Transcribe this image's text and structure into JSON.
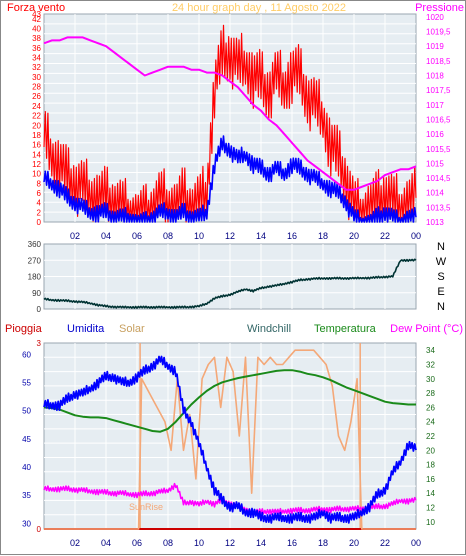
{
  "title": "24 hour graph day , 11 Agosto 2022",
  "colors": {
    "wind_max": "#ff0000",
    "wind_avg": "#0000ff",
    "pressure": "#ff00ff",
    "direction": "#003333",
    "humidity": "#0000ff",
    "solar": "#f4a878",
    "windchill": "#336666",
    "temperature": "#1a8a1a",
    "dewpoint": "#ff00ff",
    "rain": "#cc0000",
    "plot_bg": "#e6edf2",
    "grid": "#ffffff",
    "sunrise_line": "#f4a878"
  },
  "chart_data": [
    {
      "id": "wind",
      "type": "line",
      "left_axis_label": "Forza vento",
      "right_axis_label": "Pressione",
      "x_ticks": [
        "02",
        "04",
        "06",
        "08",
        "10",
        "12",
        "14",
        "16",
        "18",
        "20",
        "22",
        "00"
      ],
      "y_left_ticks": [
        "0",
        "2",
        "4",
        "6",
        "8",
        "10",
        "12",
        "14",
        "16",
        "18",
        "20",
        "22",
        "24",
        "26",
        "28",
        "30",
        "32",
        "34",
        "36",
        "38",
        "40",
        "42",
        "43"
      ],
      "y_right_ticks": [
        "1013",
        "1013,5",
        "1014",
        "1014,5",
        "1015",
        "1015,5",
        "1016",
        "1016,5",
        "1017",
        "1017,5",
        "1018",
        "1018,5",
        "1019",
        "1019,5",
        "1020"
      ],
      "ylim_left": [
        0,
        43
      ],
      "ylim_right": [
        1013,
        1020.1
      ],
      "series": [
        {
          "key": "gust",
          "axis": "left",
          "x": [
            0,
            0.5,
            1,
            1.5,
            2,
            2.5,
            3,
            3.5,
            4,
            4.5,
            5,
            5.5,
            6,
            6.5,
            7,
            7.5,
            8,
            8.5,
            9,
            9.5,
            10,
            10.5,
            11,
            11.5,
            12,
            12.5,
            13,
            13.5,
            14,
            14.5,
            15,
            15.5,
            16,
            16.5,
            17,
            17.5,
            18,
            18.5,
            19,
            19.5,
            20,
            20.5,
            21,
            21.5,
            22,
            22.5,
            23,
            23.5,
            24
          ],
          "values": [
            18,
            14,
            12,
            9,
            8,
            7,
            6,
            5,
            5,
            4,
            3,
            2,
            1,
            1,
            3,
            5,
            4,
            3,
            5,
            3,
            4,
            6,
            28,
            34,
            35,
            32,
            33,
            30,
            29,
            27,
            30,
            28,
            31,
            30,
            26,
            24,
            22,
            16,
            13,
            9,
            3,
            2,
            3,
            4,
            6,
            4,
            3,
            4,
            5
          ]
        },
        {
          "key": "average",
          "axis": "left",
          "x": [
            0,
            0.5,
            1,
            1.5,
            2,
            2.5,
            3,
            3.5,
            4,
            4.5,
            5,
            5.5,
            6,
            6.5,
            7,
            7.5,
            8,
            8.5,
            9,
            9.5,
            10,
            10.5,
            11,
            11.5,
            12,
            12.5,
            13,
            13.5,
            14,
            14.5,
            15,
            15.5,
            16,
            16.5,
            17,
            17.5,
            18,
            18.5,
            19,
            19.5,
            20,
            20.5,
            21,
            21.5,
            22,
            22.5,
            23,
            23.5,
            24
          ],
          "values": [
            9,
            8,
            7,
            5,
            4,
            3,
            2,
            2,
            2,
            1,
            1,
            1,
            0,
            0,
            1,
            2,
            2,
            1,
            2,
            1,
            1,
            2,
            12,
            16,
            15,
            13,
            14,
            12,
            11,
            10,
            11,
            10,
            12,
            11,
            10,
            9,
            8,
            7,
            6,
            4,
            1,
            0,
            0,
            1,
            2,
            1,
            0,
            1,
            1
          ]
        },
        {
          "key": "pressure",
          "axis": "right",
          "x": [
            0,
            0.5,
            1,
            1.5,
            2,
            2.5,
            3,
            3.5,
            4,
            4.5,
            5,
            5.5,
            6,
            6.5,
            7,
            7.5,
            8,
            8.5,
            9,
            9.5,
            10,
            10.5,
            11,
            11.5,
            12,
            12.5,
            13,
            13.5,
            14,
            14.5,
            15,
            15.5,
            16,
            16.5,
            17,
            17.5,
            18,
            18.5,
            19,
            19.5,
            20,
            20.5,
            21,
            21.5,
            22,
            22.5,
            23,
            23.5,
            24
          ],
          "values": [
            1019.1,
            1019.2,
            1019.2,
            1019.3,
            1019.3,
            1019.3,
            1019.2,
            1019.1,
            1019.0,
            1018.8,
            1018.6,
            1018.4,
            1018.2,
            1018.0,
            1018.1,
            1018.2,
            1018.3,
            1018.3,
            1018.3,
            1018.2,
            1018.2,
            1018.1,
            1018.1,
            1018.0,
            1017.8,
            1017.6,
            1017.3,
            1017.0,
            1016.8,
            1016.5,
            1016.3,
            1016.0,
            1015.7,
            1015.4,
            1015.1,
            1014.9,
            1014.7,
            1014.5,
            1014.3,
            1014.1,
            1014.1,
            1014.2,
            1014.3,
            1014.4,
            1014.6,
            1014.7,
            1014.8,
            1014.8,
            1014.9
          ]
        }
      ]
    },
    {
      "id": "direction",
      "type": "line",
      "y_left_ticks": [
        "0",
        "90",
        "180",
        "270",
        "360"
      ],
      "y_right_labels": [
        "N",
        "W",
        "S",
        "E",
        "N"
      ],
      "ylim": [
        0,
        360
      ],
      "series": [
        {
          "key": "direction",
          "x": [
            0,
            0.5,
            1,
            1.5,
            2,
            2.5,
            3,
            3.5,
            4,
            4.5,
            5,
            5.5,
            6,
            6.5,
            7,
            7.5,
            8,
            8.5,
            9,
            9.5,
            10,
            10.5,
            11,
            11.5,
            12,
            12.5,
            13,
            13.5,
            14,
            14.5,
            15,
            15.5,
            16,
            16.5,
            17,
            17.5,
            18,
            18.5,
            19,
            19.5,
            20,
            20.5,
            21,
            21.5,
            22,
            22.5,
            23,
            23.5,
            24
          ],
          "values": [
            55,
            50,
            48,
            45,
            42,
            38,
            32,
            22,
            15,
            12,
            10,
            10,
            10,
            10,
            10,
            10,
            10,
            10,
            10,
            12,
            15,
            30,
            60,
            70,
            80,
            95,
            110,
            100,
            115,
            125,
            130,
            140,
            150,
            160,
            165,
            168,
            170,
            170,
            170,
            170,
            170,
            172,
            172,
            175,
            178,
            180,
            270,
            270,
            270
          ]
        }
      ]
    },
    {
      "id": "temperature",
      "type": "line",
      "labels": {
        "rain": "Pioggia",
        "humidity": "Umidita",
        "solar": "Solar",
        "windchill": "Windchill",
        "temperature": "Temperatura",
        "dewpoint": "Dew Point (°C)"
      },
      "sunrise_label": "SunRise",
      "sunrise_x": [
        6.2,
        20.4
      ],
      "x_ticks": [
        "02",
        "04",
        "06",
        "08",
        "10",
        "12",
        "14",
        "16",
        "18",
        "20",
        "22",
        "00"
      ],
      "y_left_ticks": [
        "30",
        "35",
        "40",
        "45",
        "50",
        "55",
        "60"
      ],
      "y_right_ticks": [
        "10",
        "12",
        "14",
        "16",
        "18",
        "20",
        "22",
        "24",
        "26",
        "28",
        "30",
        "32",
        "34"
      ],
      "y_rain_ticks": [
        "0",
        "3"
      ],
      "ylim_left": [
        29,
        62
      ],
      "ylim_right": [
        9,
        35
      ],
      "series": [
        {
          "key": "humidity",
          "axis": "left",
          "x": [
            0,
            0.5,
            1,
            1.5,
            2,
            2.5,
            3,
            3.5,
            4,
            4.5,
            5,
            5.5,
            6,
            6.5,
            7,
            7.5,
            8,
            8.5,
            9,
            9.5,
            10,
            10.5,
            11,
            11.5,
            12,
            12.5,
            13,
            13.5,
            14,
            14.5,
            15,
            15.5,
            16,
            16.5,
            17,
            17.5,
            18,
            18.5,
            19,
            19.5,
            20,
            20.5,
            21,
            21.5,
            22,
            22.5,
            23,
            23.5,
            24
          ],
          "values": [
            51,
            51,
            51,
            52,
            53,
            53,
            54,
            55,
            56,
            56,
            55,
            55,
            56,
            57,
            58,
            59,
            58,
            57,
            50,
            48,
            44,
            40,
            36,
            34,
            33,
            33,
            32,
            32,
            31,
            31,
            31,
            31,
            31,
            31,
            31,
            31,
            32,
            31,
            31,
            31,
            31,
            32,
            33,
            35,
            36,
            39,
            41,
            44,
            43
          ]
        },
        {
          "key": "solar",
          "axis": "right",
          "x": [
            0,
            6.1,
            6.3,
            6.8,
            7.3,
            7.8,
            8.2,
            8.6,
            9.0,
            9.4,
            9.8,
            10.2,
            10.6,
            11.0,
            11.4,
            11.8,
            12.2,
            12.6,
            13.0,
            13.4,
            13.8,
            14.2,
            14.6,
            15.0,
            15.4,
            15.8,
            16.2,
            16.6,
            17.0,
            17.4,
            17.8,
            18.2,
            18.6,
            19.0,
            19.4,
            19.8,
            20.2,
            20.5,
            24
          ],
          "values": [
            9,
            9,
            30,
            28,
            26,
            24,
            20,
            30,
            20,
            25,
            16,
            30,
            32,
            33,
            26,
            33,
            31,
            22,
            33,
            14,
            33,
            32,
            33,
            32,
            32,
            33,
            34,
            34,
            34,
            34,
            33,
            32,
            29,
            22,
            20,
            24,
            30,
            9,
            9
          ]
        },
        {
          "key": "temperature",
          "axis": "right",
          "x": [
            0,
            0.5,
            1,
            1.5,
            2,
            2.5,
            3,
            3.5,
            4,
            4.5,
            5,
            5.5,
            6,
            6.5,
            7,
            7.5,
            8,
            8.5,
            9,
            9.5,
            10,
            10.5,
            11,
            11.5,
            12,
            12.5,
            13,
            13.5,
            14,
            14.5,
            15,
            15.5,
            16,
            16.5,
            17,
            17.5,
            18,
            18.5,
            19,
            19.5,
            20,
            20.5,
            21,
            21.5,
            22,
            22.5,
            23,
            23.5,
            24
          ],
          "values": [
            26.0,
            25.9,
            25.7,
            25.3,
            24.9,
            24.7,
            24.6,
            24.6,
            24.5,
            24.2,
            23.9,
            23.6,
            23.3,
            23.0,
            22.7,
            22.6,
            23.0,
            24.0,
            25.2,
            26.4,
            27.4,
            28.3,
            29.0,
            29.5,
            29.8,
            30.1,
            30.3,
            30.5,
            30.7,
            30.9,
            31.1,
            31.2,
            31.2,
            31.0,
            30.7,
            30.5,
            30.2,
            29.8,
            29.3,
            28.8,
            28.4,
            28.0,
            27.6,
            27.2,
            26.8,
            26.6,
            26.5,
            26.4,
            26.4
          ]
        },
        {
          "key": "dewpoint",
          "axis": "right",
          "x": [
            0,
            0.5,
            1,
            1.5,
            2,
            2.5,
            3,
            3.5,
            4,
            4.5,
            5,
            5.5,
            6,
            6.5,
            7,
            7.5,
            8,
            8.5,
            9,
            9.5,
            10,
            10.5,
            11,
            11.5,
            12,
            12.5,
            13,
            13.5,
            14,
            14.5,
            15,
            15.5,
            16,
            16.5,
            17,
            17.5,
            18,
            18.5,
            19,
            19.5,
            20,
            20.5,
            21,
            21.5,
            22,
            22.5,
            23,
            23.5,
            24
          ],
          "values": [
            14.6,
            14.6,
            14.6,
            14.6,
            14.5,
            14.4,
            14.3,
            14.2,
            14.1,
            14.0,
            14.0,
            13.9,
            13.8,
            13.9,
            14.0,
            14.2,
            14.4,
            15.2,
            12.6,
            12.8,
            12.4,
            12.9,
            12.5,
            13.0,
            12.6,
            12.2,
            11.8,
            11.4,
            11.4,
            11.5,
            11.4,
            11.5,
            11.6,
            11.6,
            11.6,
            11.7,
            11.8,
            11.7,
            11.8,
            11.8,
            11.8,
            11.9,
            12.0,
            12.1,
            12.2,
            12.5,
            13.0,
            12.9,
            13.0
          ]
        },
        {
          "key": "windchill",
          "axis": "right",
          "x": [
            0,
            24
          ],
          "values": [
            9,
            9
          ]
        }
      ]
    }
  ]
}
